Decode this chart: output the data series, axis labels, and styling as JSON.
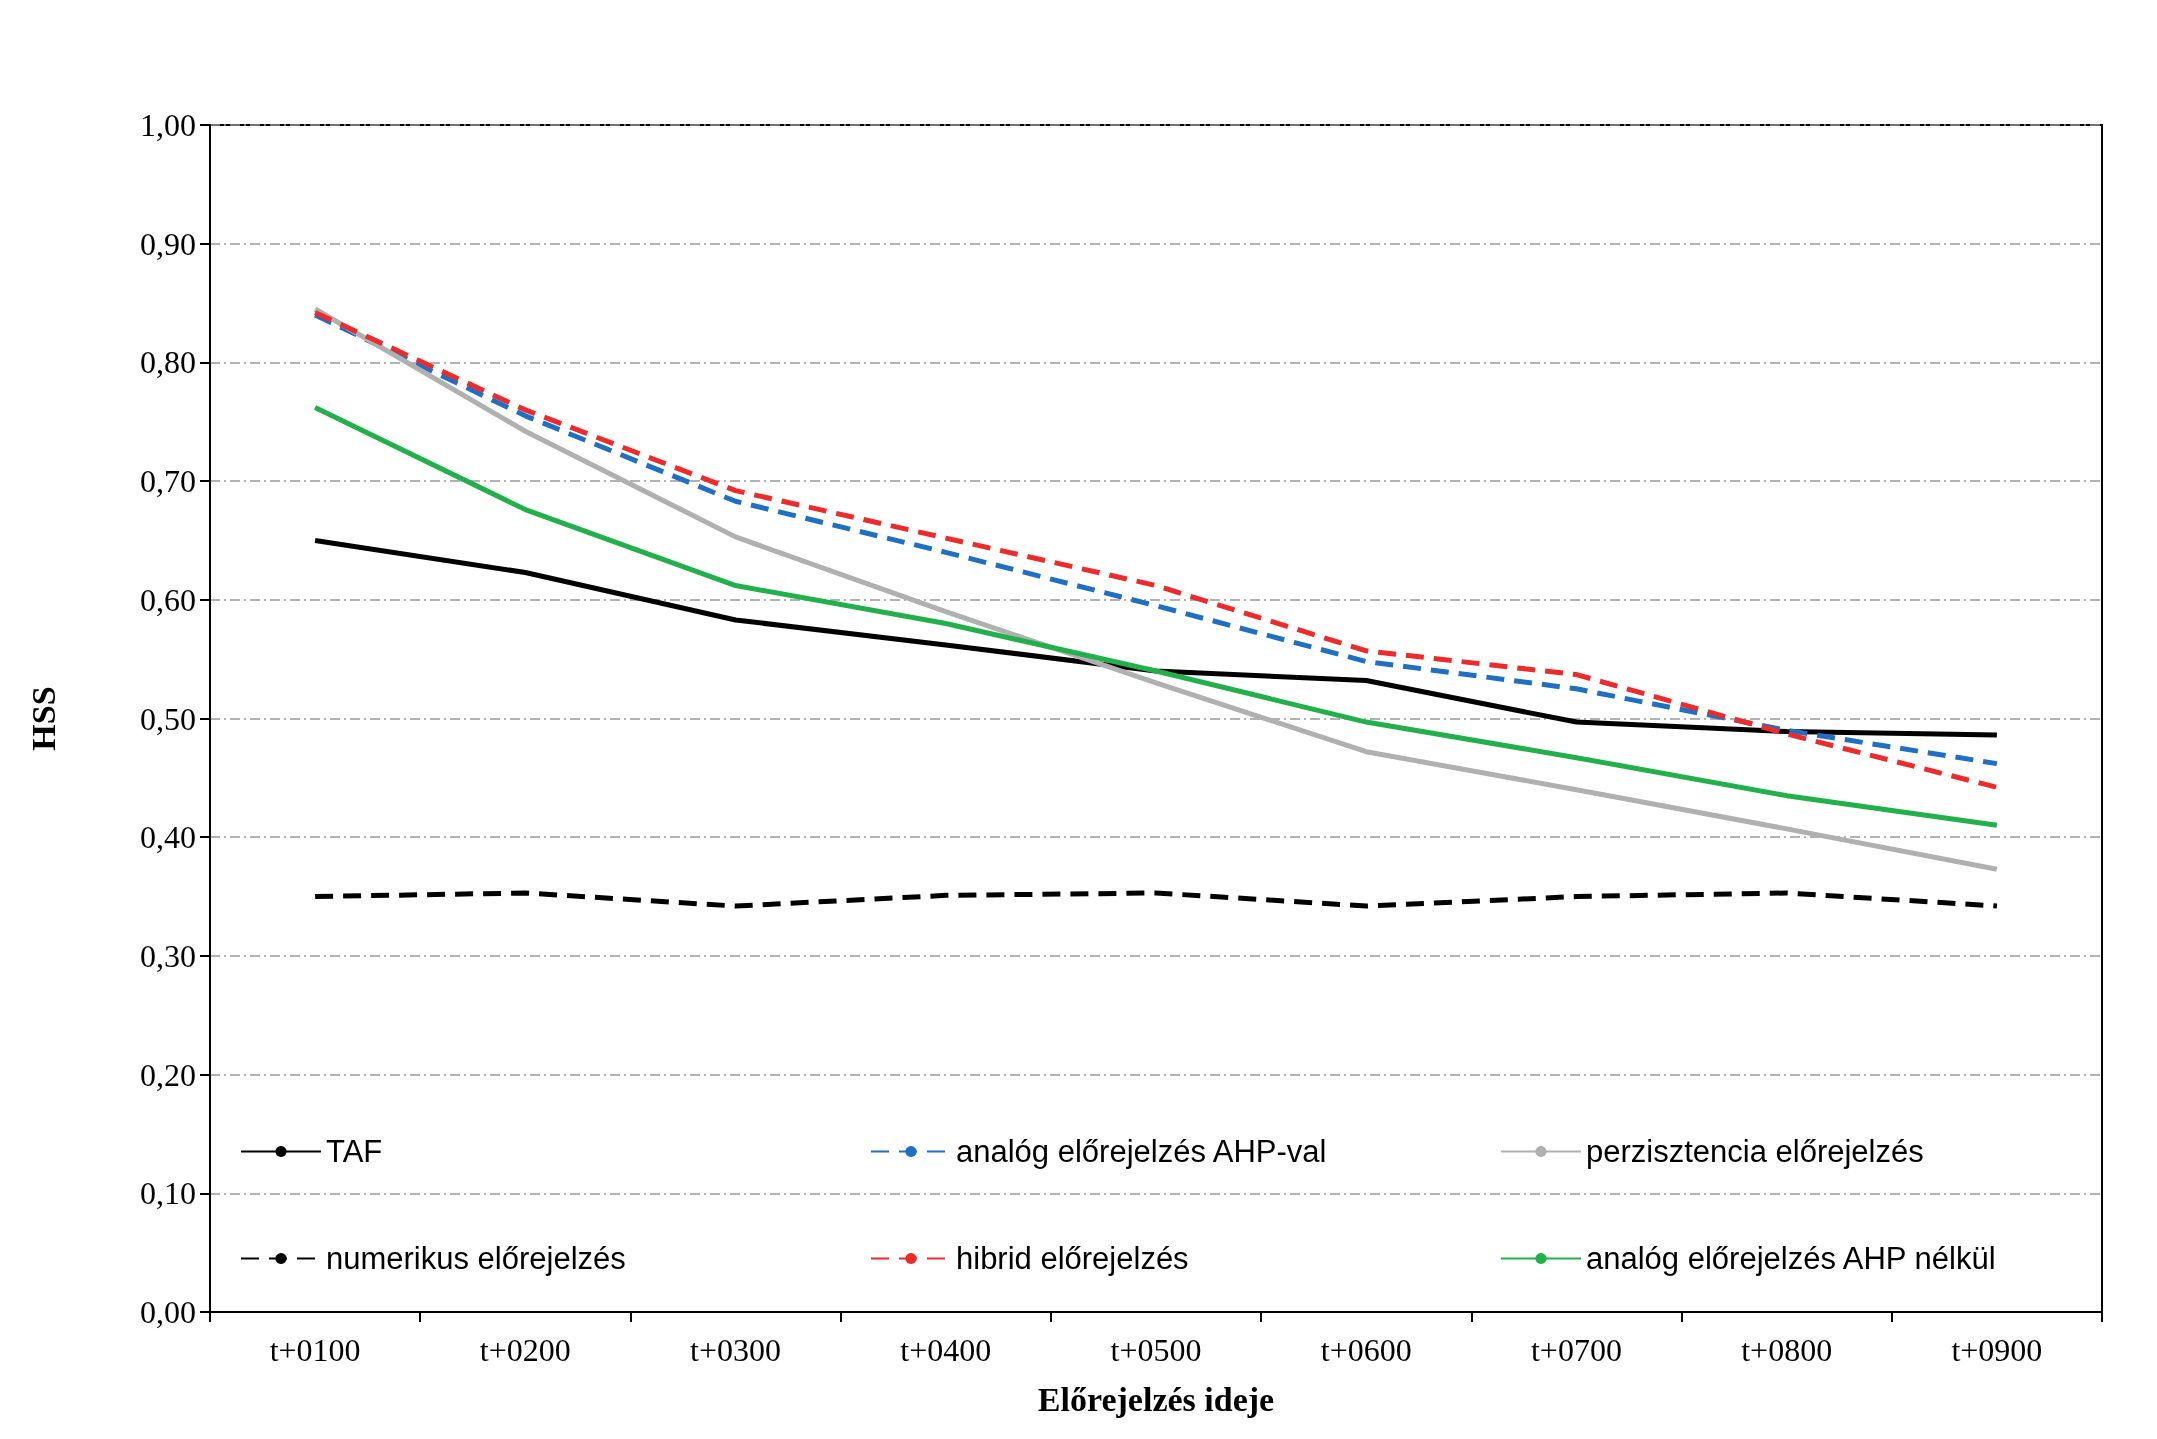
{
  "chart_data": {
    "type": "line",
    "xlabel": "Előrejelzés ideje",
    "ylabel": "HSS",
    "categories": [
      "t+0100",
      "t+0200",
      "t+0300",
      "t+0400",
      "t+0500",
      "t+0600",
      "t+0700",
      "t+0800",
      "t+0900"
    ],
    "series": [
      {
        "name": "TAF",
        "color": "#000000",
        "line_style": "solid",
        "values": [
          0.65,
          0.623,
          0.583,
          0.562,
          0.54,
          0.532,
          0.497,
          0.489,
          0.486
        ]
      },
      {
        "name": "analóg előrejelzés AHP-val",
        "color": "#1f6fc5",
        "line_style": "dashed",
        "values": [
          0.84,
          0.755,
          0.683,
          0.64,
          0.595,
          0.548,
          0.525,
          0.49,
          0.462
        ]
      },
      {
        "name": "perzisztencia előrejelzés",
        "color": "#b0b0b0",
        "line_style": "solid",
        "values": [
          0.845,
          0.742,
          0.653,
          0.59,
          0.53,
          0.472,
          0.44,
          0.407,
          0.373
        ]
      },
      {
        "name": "numerikus előrejelzés",
        "color": "#000000",
        "line_style": "dashed",
        "values": [
          0.35,
          0.353,
          0.342,
          0.351,
          0.353,
          0.342,
          0.35,
          0.353,
          0.342
        ]
      },
      {
        "name": "hibrid előrejelzés",
        "color": "#ee2a2a",
        "line_style": "dashed",
        "values": [
          0.842,
          0.76,
          0.692,
          0.652,
          0.612,
          0.557,
          0.537,
          0.487,
          0.442
        ]
      },
      {
        "name": "analóg előrejelzés AHP nélkül",
        "color": "#22b04b",
        "line_style": "solid",
        "values": [
          0.762,
          0.676,
          0.612,
          0.58,
          0.54,
          0.497,
          0.467,
          0.435,
          0.41
        ]
      }
    ],
    "ylim": [
      0,
      1
    ],
    "yticks": [
      {
        "value": 0,
        "label": "0,00"
      },
      {
        "value": 0.1,
        "label": "0,10"
      },
      {
        "value": 0.2,
        "label": "0,20"
      },
      {
        "value": 0.3,
        "label": "0,30"
      },
      {
        "value": 0.4,
        "label": "0,40"
      },
      {
        "value": 0.5,
        "label": "0,50"
      },
      {
        "value": 0.6,
        "label": "0,60"
      },
      {
        "value": 0.7,
        "label": "0,70"
      },
      {
        "value": 0.8,
        "label": "0,80"
      },
      {
        "value": 0.9,
        "label": "0,90"
      },
      {
        "value": 1,
        "label": "1,00"
      }
    ],
    "grid": "y",
    "legend": "bottom left",
    "marker": "none"
  }
}
